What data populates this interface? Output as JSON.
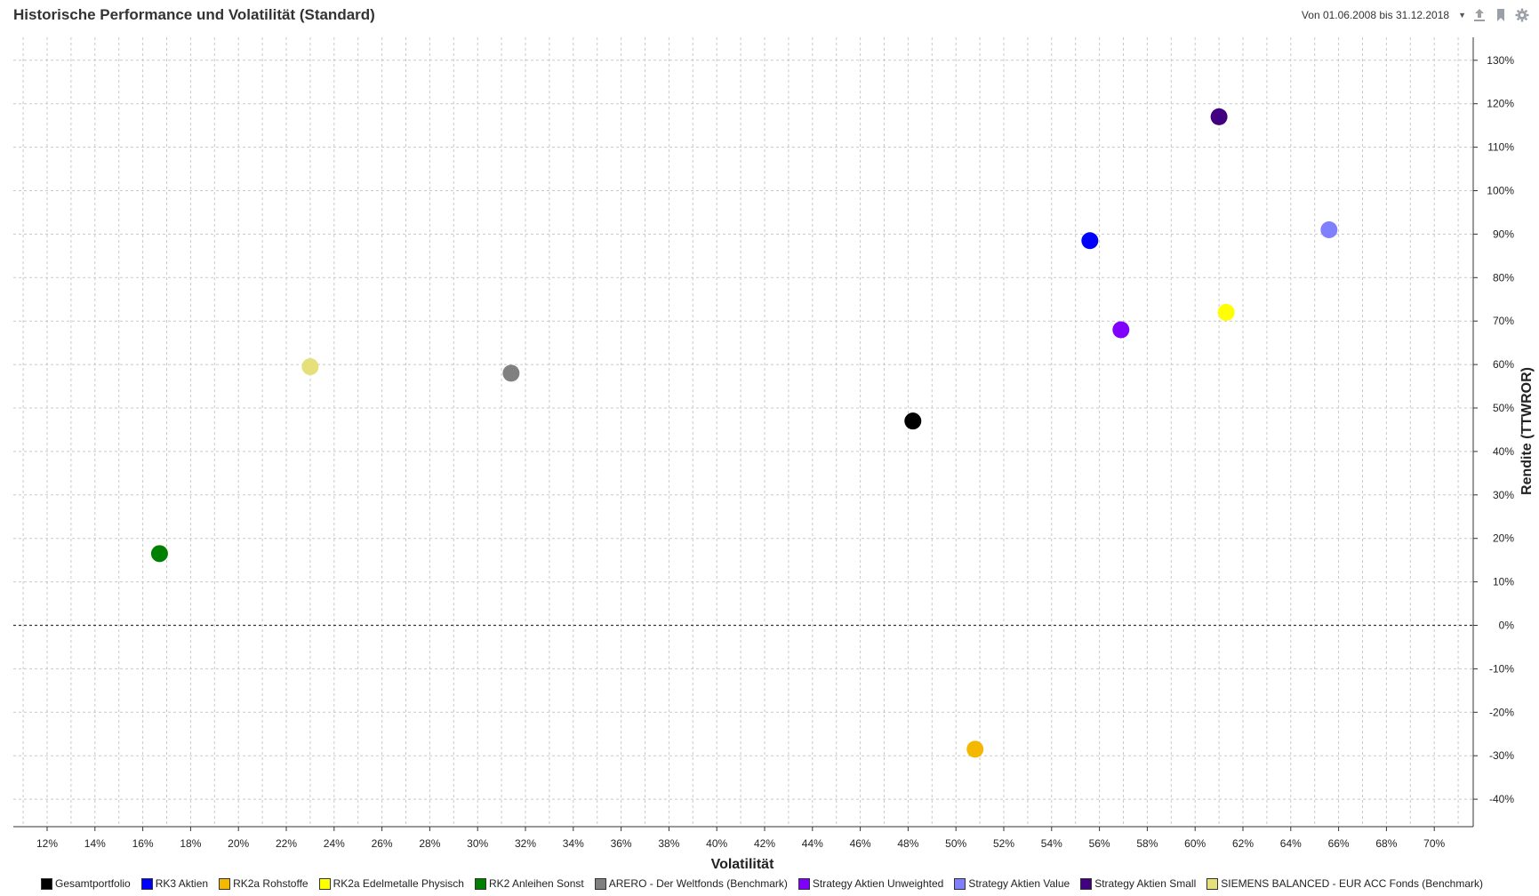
{
  "header": {
    "title": "Historische Performance und Volatilität (Standard)",
    "date_range_label": "Von 01.06.2008 bis 31.12.2018"
  },
  "icons": {
    "export": "upload-icon",
    "bookmark": "bookmark-icon",
    "settings": "gear-icon"
  },
  "chart_data": {
    "type": "scatter",
    "title": "Historische Performance und Volatilität (Standard)",
    "xlabel": "Volatilität",
    "ylabel": "Rendite (TTWROR)",
    "xlim": [
      11,
      72
    ],
    "ylim": [
      -47,
      136
    ],
    "x_ticks": [
      12,
      14,
      16,
      18,
      20,
      22,
      24,
      26,
      28,
      30,
      32,
      34,
      36,
      38,
      40,
      42,
      44,
      46,
      48,
      50,
      52,
      54,
      56,
      58,
      60,
      62,
      64,
      66,
      68,
      70
    ],
    "y_ticks": [
      -40,
      -30,
      -20,
      -10,
      0,
      10,
      20,
      30,
      40,
      50,
      60,
      70,
      80,
      90,
      100,
      110,
      120,
      130
    ],
    "tick_suffix": "%",
    "grid": true,
    "legend_position": "bottom",
    "y_axis_side": "right",
    "series": [
      {
        "name": "Gesamtportfolio",
        "color": "#000000",
        "x": 48.2,
        "y": 47
      },
      {
        "name": "RK3 Aktien",
        "color": "#0000ff",
        "x": 55.6,
        "y": 88.5
      },
      {
        "name": "RK2a Rohstoffe",
        "color": "#f5b800",
        "x": 50.8,
        "y": -28.5
      },
      {
        "name": "RK2a Edelmetalle Physisch",
        "color": "#ffff00",
        "x": 61.3,
        "y": 72
      },
      {
        "name": "RK2 Anleihen Sonst",
        "color": "#008000",
        "x": 16.7,
        "y": 16.5
      },
      {
        "name": "ARERO - Der Weltfonds (Benchmark)",
        "color": "#808080",
        "x": 31.4,
        "y": 58
      },
      {
        "name": "Strategy Aktien Unweighted",
        "color": "#8000ff",
        "x": 56.9,
        "y": 68
      },
      {
        "name": "Strategy Aktien Value",
        "color": "#8080ff",
        "x": 65.6,
        "y": 91
      },
      {
        "name": "Strategy Aktien Small",
        "color": "#400080",
        "x": 61.0,
        "y": 117
      },
      {
        "name": "SIEMENS BALANCED - EUR ACC Fonds (Benchmark)",
        "color": "#e6e07a",
        "x": 23.0,
        "y": 59.5
      }
    ]
  }
}
